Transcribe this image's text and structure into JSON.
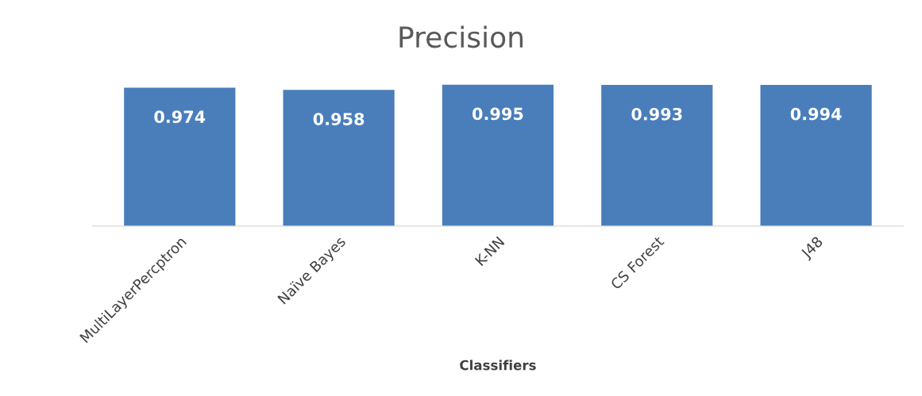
{
  "chart_data": {
    "type": "bar",
    "title": "Precision",
    "xlabel": "Classifiers",
    "categories": [
      "MultiLayerPercptron",
      "Naïve Bayes",
      "K-NN",
      "CS Forest",
      "J48"
    ],
    "values": [
      0.974,
      0.958,
      0.995,
      0.993,
      0.994
    ],
    "data_labels": true,
    "color": "#4a7ebb",
    "tick_labels": "x"
  }
}
